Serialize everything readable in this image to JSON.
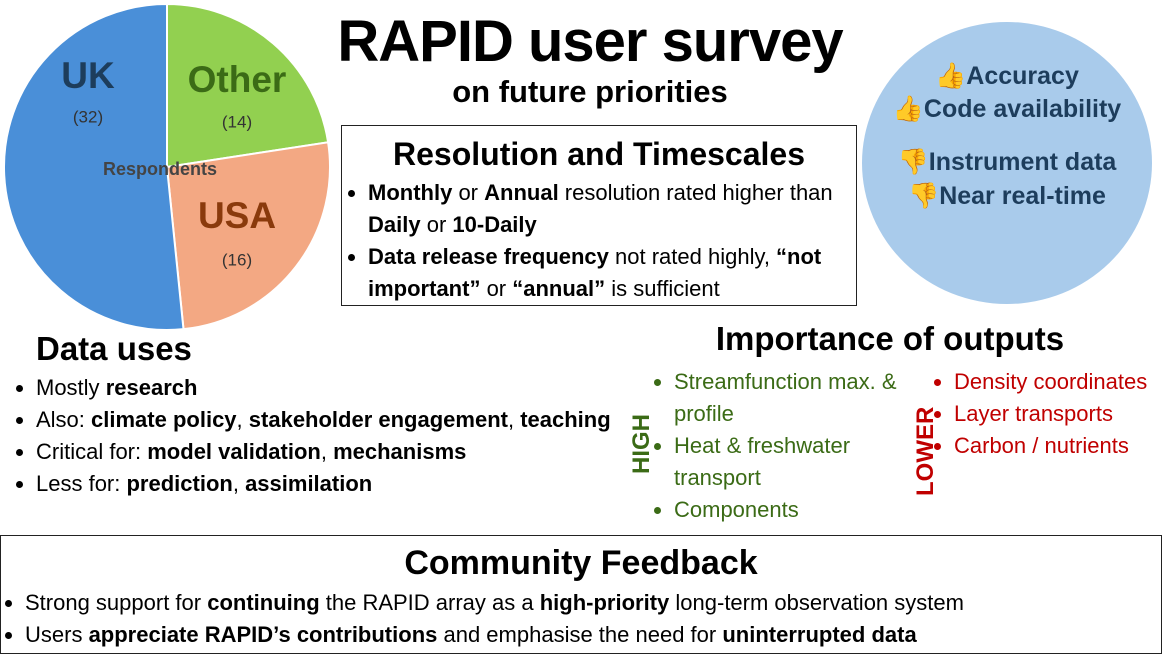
{
  "title": "RAPID user survey",
  "subtitle": "on future priorities",
  "chart_data": {
    "type": "pie",
    "categories": [
      "Other",
      "USA",
      "UK"
    ],
    "values": [
      14,
      16,
      32
    ],
    "value_labels": [
      "(14)",
      "(16)",
      "(32)"
    ],
    "colors": [
      "#92d050",
      "#f3a883",
      "#4a8fd8"
    ],
    "label_colors": [
      "#3b6b16",
      "#8a3a0c",
      "#1d3d5c"
    ],
    "center_label": "Respondents"
  },
  "resolution": {
    "heading": "Resolution and Timescales",
    "bullets": [
      [
        {
          "text": "Monthly",
          "bold": true
        },
        {
          "text": " or "
        },
        {
          "text": "Annual",
          "bold": true
        },
        {
          "text": " resolution rated higher than "
        },
        {
          "text": "Daily",
          "bold": true
        },
        {
          "text": " or "
        },
        {
          "text": "10-Daily",
          "bold": true
        }
      ],
      [
        {
          "text": "Data release frequency",
          "bold": true
        },
        {
          "text": " not rated highly, "
        },
        {
          "text": "“not important”",
          "bold": true
        },
        {
          "text": " or "
        },
        {
          "text": "“annual”",
          "bold": true
        },
        {
          "text": " is sufficient"
        }
      ]
    ]
  },
  "ratings": [
    {
      "icon": "👍",
      "text": "Accuracy"
    },
    {
      "icon": "👍",
      "text": "Code availability"
    },
    {
      "icon": "👎",
      "text": "Instrument data"
    },
    {
      "icon": "👎",
      "text": "Near real-time"
    }
  ],
  "data_uses": {
    "heading": "Data uses",
    "bullets": [
      [
        {
          "text": "Mostly "
        },
        {
          "text": "research",
          "bold": true
        }
      ],
      [
        {
          "text": "Also: "
        },
        {
          "text": "climate policy",
          "bold": true
        },
        {
          "text": ", "
        },
        {
          "text": "stakeholder engagement",
          "bold": true
        },
        {
          "text": ", "
        },
        {
          "text": "teaching",
          "bold": true
        }
      ],
      [
        {
          "text": "Critical for: "
        },
        {
          "text": "model validation",
          "bold": true
        },
        {
          "text": ", "
        },
        {
          "text": "mechanisms",
          "bold": true
        }
      ],
      [
        {
          "text": "Less for: "
        },
        {
          "text": "prediction",
          "bold": true
        },
        {
          "text": ", "
        },
        {
          "text": "assimilation",
          "bold": true
        }
      ]
    ]
  },
  "importance": {
    "heading": "Importance of outputs",
    "high": {
      "label": "HIGH",
      "items": [
        "Streamfunction max. & profile",
        "Heat & freshwater transport",
        "Components"
      ]
    },
    "lower": {
      "label": "LOWER",
      "items": [
        "Density coordinates",
        "Layer transports",
        "Carbon / nutrients"
      ]
    }
  },
  "feedback": {
    "heading": "Community Feedback",
    "bullets": [
      [
        {
          "text": "Strong support for "
        },
        {
          "text": "continuing",
          "bold": true
        },
        {
          "text": " the RAPID array as a "
        },
        {
          "text": "high-priority",
          "bold": true
        },
        {
          "text": " long-term observation system"
        }
      ],
      [
        {
          "text": "Users "
        },
        {
          "text": "appreciate RAPID’s contributions",
          "bold": true
        },
        {
          "text": " and emphasise the need for "
        },
        {
          "text": "uninterrupted data",
          "bold": true
        }
      ]
    ]
  }
}
